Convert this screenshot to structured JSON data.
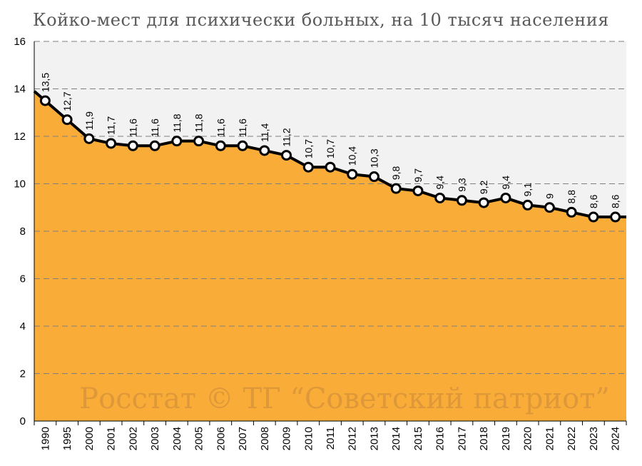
{
  "chart_data": {
    "type": "area",
    "title": "Койко-мест для психически больных, на 10 тысяч населения",
    "watermark": "Росстат © ТГ “Советский патриот”",
    "categories": [
      "1990",
      "1995",
      "2000",
      "2001",
      "2002",
      "2003",
      "2004",
      "2005",
      "2006",
      "2007",
      "2008",
      "2009",
      "2010",
      "2011",
      "2012",
      "2013",
      "2014",
      "2015",
      "2016",
      "2017",
      "2018",
      "2019",
      "2020",
      "2021",
      "2022",
      "2023",
      "2024"
    ],
    "values": [
      13.5,
      12.7,
      11.9,
      11.7,
      11.6,
      11.6,
      11.8,
      11.8,
      11.6,
      11.6,
      11.4,
      11.2,
      10.7,
      10.7,
      10.4,
      10.3,
      9.8,
      9.7,
      9.4,
      9.3,
      9.2,
      9.4,
      9.1,
      9.0,
      8.8,
      8.6,
      8.6
    ],
    "value_labels": [
      "13,5",
      "12,7",
      "11,9",
      "11,7",
      "11,6",
      "11,6",
      "11,8",
      "11,8",
      "11,6",
      "11,6",
      "11,4",
      "11,2",
      "10,7",
      "10,7",
      "10,4",
      "10,3",
      "9,8",
      "9,7",
      "9,4",
      "9,3",
      "9,2",
      "9,4",
      "9,1",
      "9",
      "8,8",
      "8,6",
      "8,6"
    ],
    "y_ticks": [
      0,
      2,
      4,
      6,
      8,
      10,
      12,
      14,
      16
    ],
    "ylim": [
      0,
      16
    ],
    "grid": true,
    "colors": {
      "area_fill": "#f9ad38",
      "plot_bg": "#f2f2f2",
      "line": "#000000",
      "marker_fill": "#ffffff"
    }
  }
}
